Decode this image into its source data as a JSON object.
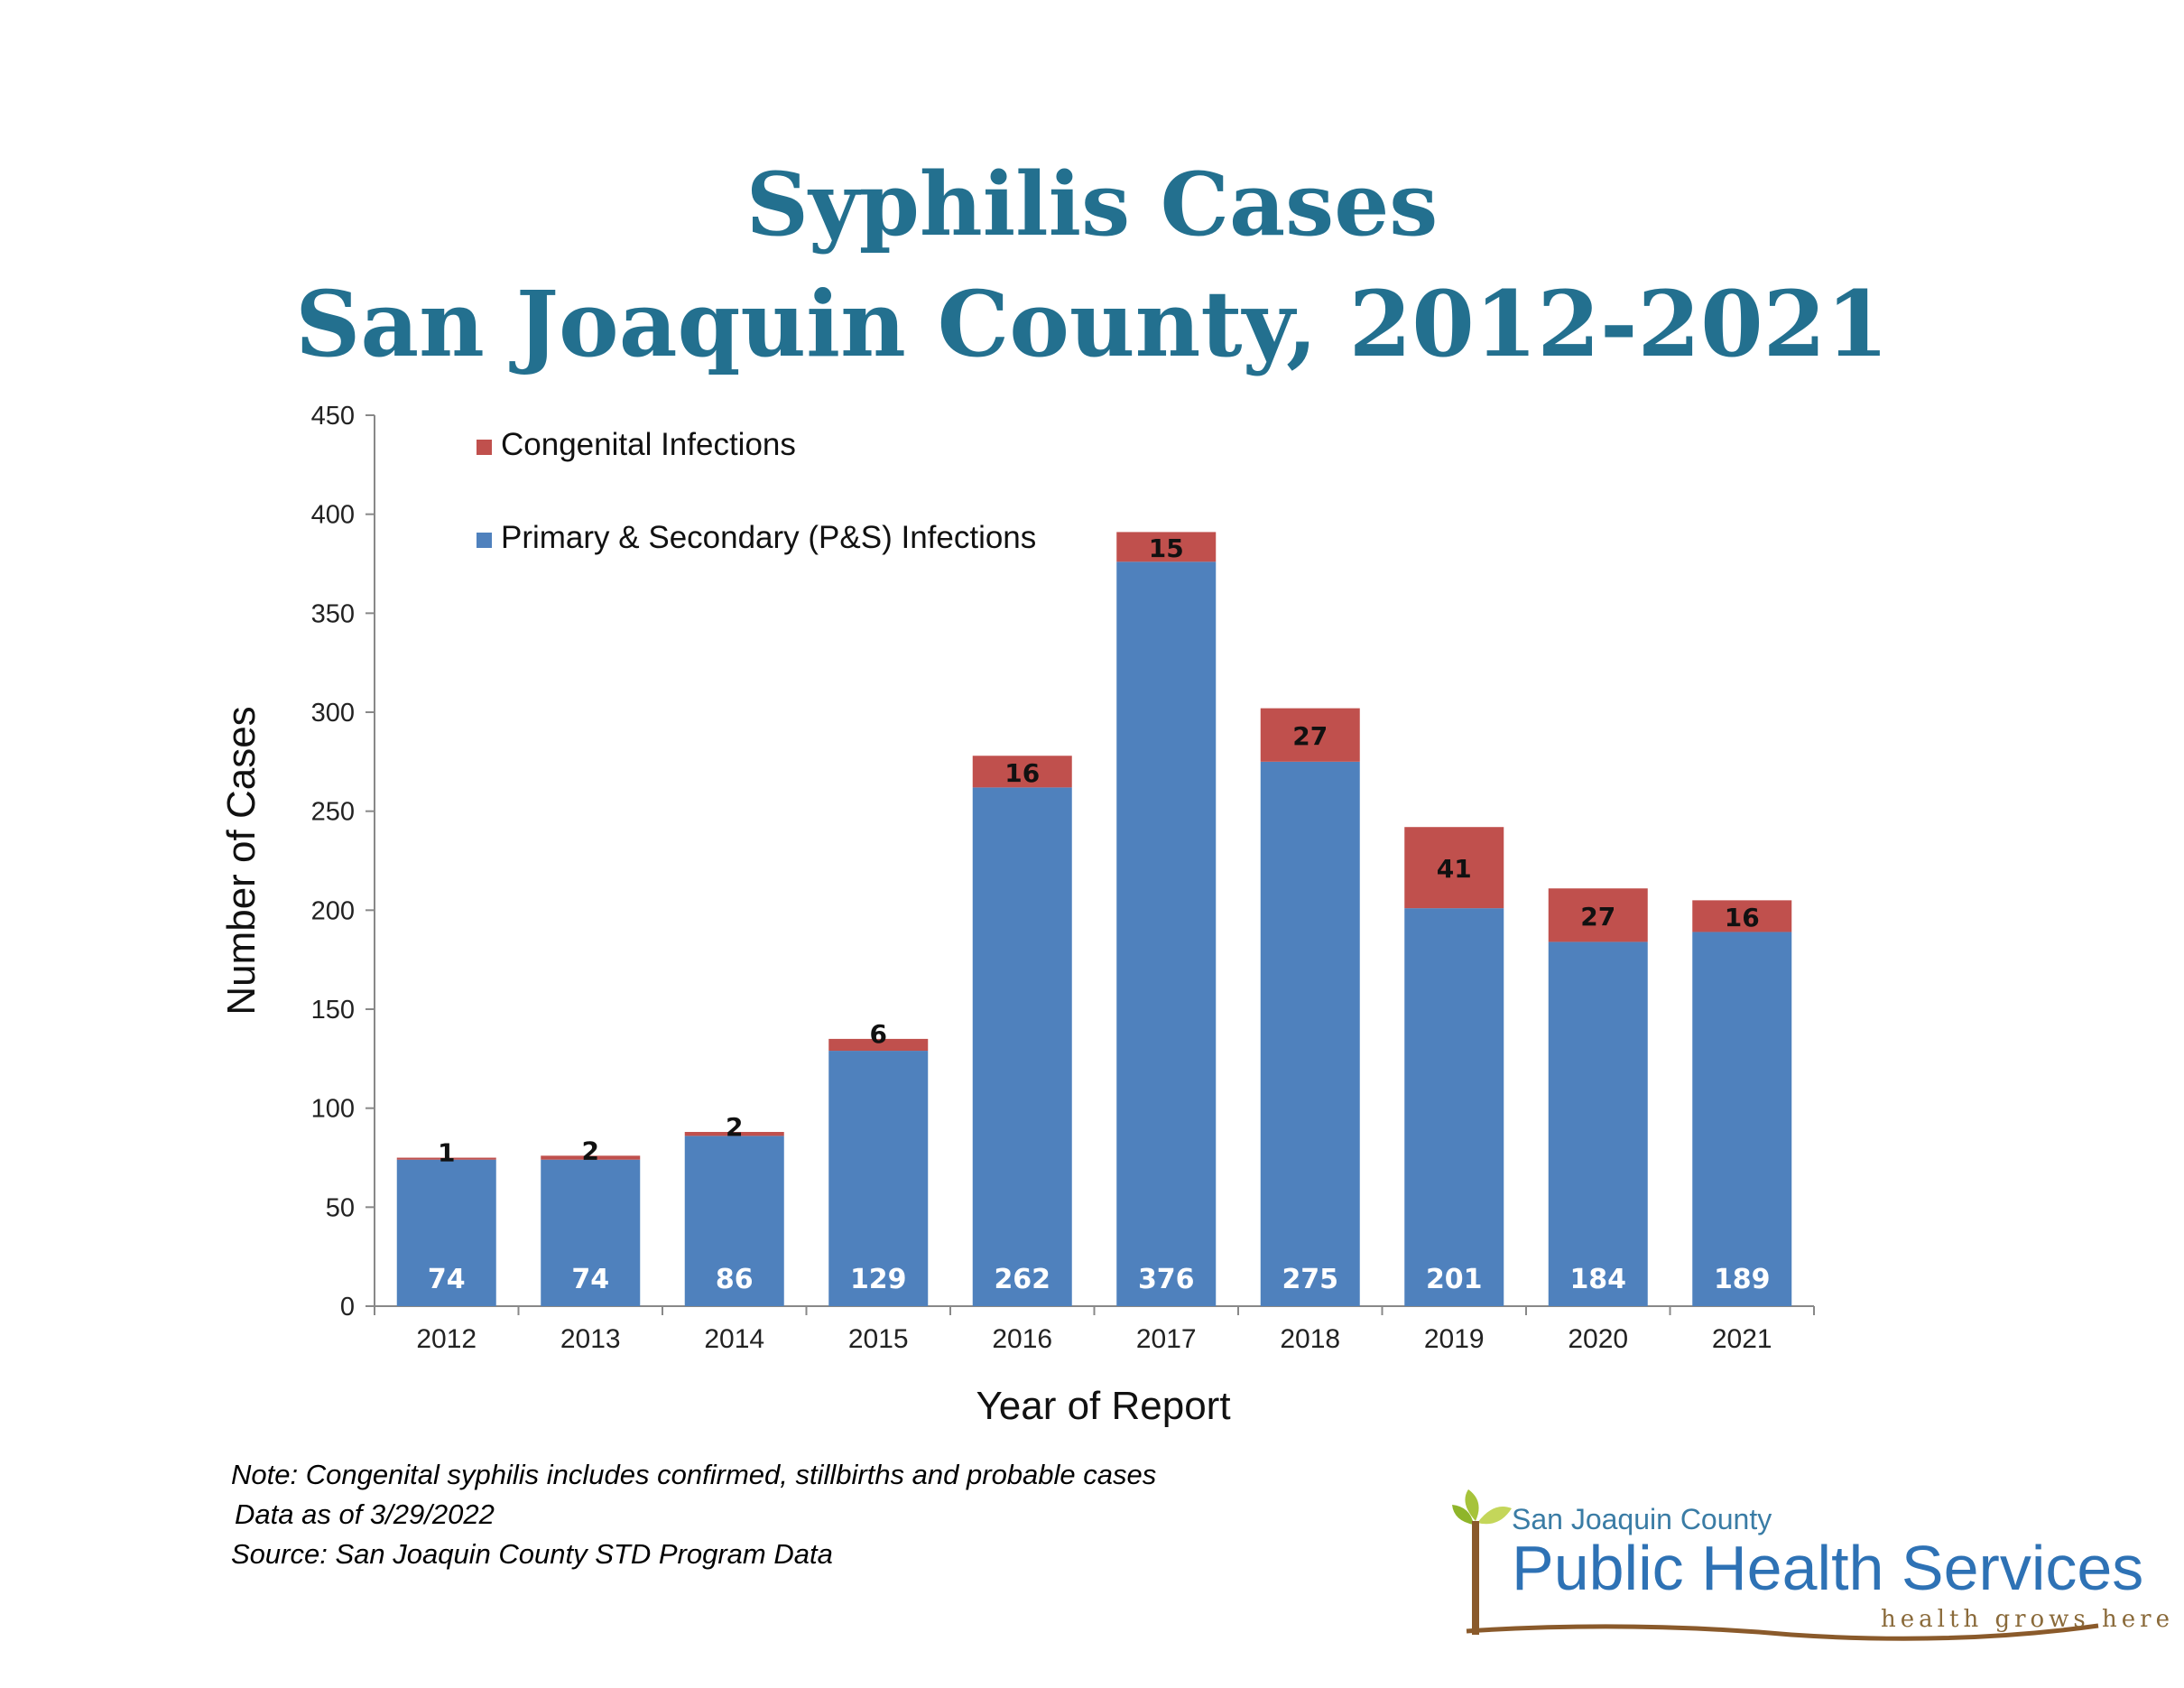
{
  "title_line1": "Syphilis Cases",
  "title_line2": "San Joaquin County, 2012-2021",
  "notes": {
    "line1": "Note: Congenital syphilis includes confirmed, stillbirths and probable cases",
    "line2": "Data as of 3/29/2022",
    "line3": "Source:  San Joaquin County STD Program  Data"
  },
  "logo": {
    "top": "San Joaquin County",
    "main": "Public Health Services",
    "tag": "health grows here"
  },
  "colors": {
    "title": "#23708f",
    "ps": "#4f81bd",
    "congenital": "#c0504d"
  },
  "chart_data": {
    "type": "bar",
    "stacked": true,
    "categories": [
      "2012",
      "2013",
      "2014",
      "2015",
      "2016",
      "2017",
      "2018",
      "2019",
      "2020",
      "2021"
    ],
    "series": [
      {
        "name": "Primary & Secondary (P&S) Infections",
        "color": "#4f81bd",
        "values": [
          74,
          74,
          86,
          129,
          262,
          376,
          275,
          201,
          184,
          189
        ]
      },
      {
        "name": "Congenital Infections",
        "color": "#c0504d",
        "values": [
          1,
          2,
          2,
          6,
          16,
          15,
          27,
          41,
          27,
          16
        ]
      }
    ],
    "xlabel": "Year of Report",
    "ylabel": "Number of Cases",
    "ylim": [
      0,
      450
    ],
    "yticks": [
      0,
      50,
      100,
      150,
      200,
      250,
      300,
      350,
      400,
      450
    ],
    "legend_position": "top-left",
    "grid": false
  }
}
